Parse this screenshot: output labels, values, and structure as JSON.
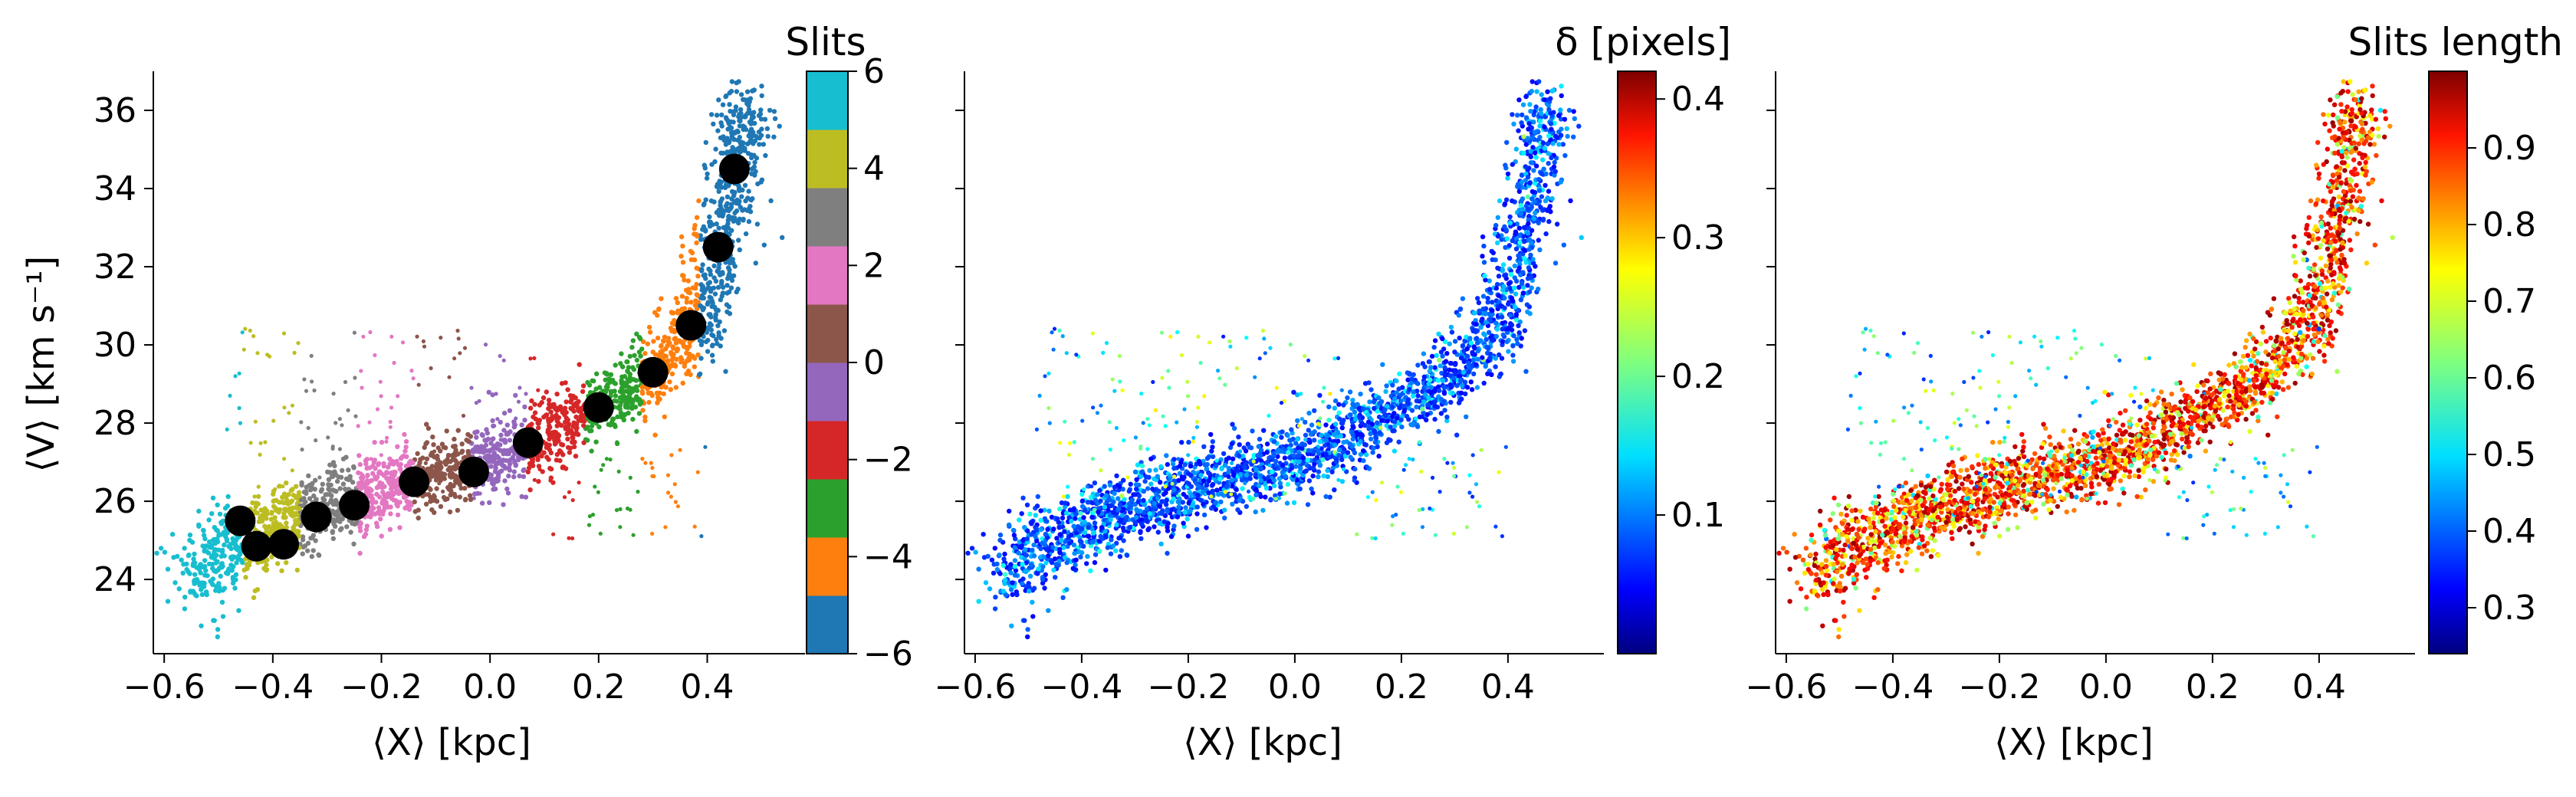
{
  "chart_data": [
    {
      "type": "scatter",
      "panel": "left",
      "xlabel": "⟨X⟩ [kpc]",
      "ylabel": "⟨V⟩ [km s⁻¹]",
      "xlim": [
        -0.62,
        0.58
      ],
      "ylim": [
        22.1,
        37.0
      ],
      "xticks": [
        -0.6,
        -0.4,
        -0.2,
        0.0,
        0.2,
        0.4
      ],
      "xtick_labels": [
        "−0.6",
        "−0.4",
        "−0.2",
        "0.0",
        "0.2",
        "0.4"
      ],
      "yticks": [
        24,
        26,
        28,
        30,
        32,
        34,
        36
      ],
      "ytick_labels": [
        "24",
        "26",
        "28",
        "30",
        "32",
        "34",
        "36"
      ],
      "colorbar": {
        "title": "Slits",
        "type": "categorical",
        "range": [
          -6,
          6
        ],
        "ticks": [
          -6,
          -4,
          -2,
          0,
          2,
          4,
          6
        ],
        "tick_labels": [
          "−6",
          "−4",
          "−2",
          "0",
          "2",
          "4",
          "6"
        ],
        "colors": [
          "#1f77b4",
          "#ff7f0e",
          "#2ca02c",
          "#d62728",
          "#9467bd",
          "#8c564b",
          "#e377c2",
          "#7f7f7f",
          "#bcbd22",
          "#17becf"
        ]
      },
      "mean_points": [
        {
          "x": 0.45,
          "y": 34.5
        },
        {
          "x": 0.42,
          "y": 32.5
        },
        {
          "x": 0.37,
          "y": 30.5
        },
        {
          "x": 0.3,
          "y": 29.3
        },
        {
          "x": 0.2,
          "y": 28.4
        },
        {
          "x": 0.07,
          "y": 27.5
        },
        {
          "x": -0.03,
          "y": 26.75
        },
        {
          "x": -0.14,
          "y": 26.5
        },
        {
          "x": -0.25,
          "y": 25.9
        },
        {
          "x": -0.32,
          "y": 25.6
        },
        {
          "x": -0.38,
          "y": 24.9
        },
        {
          "x": -0.43,
          "y": 24.85
        },
        {
          "x": -0.46,
          "y": 25.5
        }
      ]
    },
    {
      "type": "scatter",
      "panel": "middle",
      "xlabel": "⟨X⟩ [kpc]",
      "xlim": [
        -0.62,
        0.58
      ],
      "ylim": [
        22.1,
        37.0
      ],
      "xticks": [
        -0.6,
        -0.4,
        -0.2,
        0.0,
        0.2,
        0.4
      ],
      "xtick_labels": [
        "−0.6",
        "−0.4",
        "−0.2",
        "0.0",
        "0.2",
        "0.4"
      ],
      "colorbar": {
        "title": "δ [pixels]",
        "type": "jet",
        "range": [
          0.0,
          0.42
        ],
        "ticks": [
          0.1,
          0.2,
          0.3,
          0.4
        ],
        "tick_labels": [
          "0.1",
          "0.2",
          "0.3",
          "0.4"
        ]
      }
    },
    {
      "type": "scatter",
      "panel": "right",
      "xlabel": "⟨X⟩ [kpc]",
      "xlim": [
        -0.62,
        0.58
      ],
      "ylim": [
        22.1,
        37.0
      ],
      "xticks": [
        -0.6,
        -0.4,
        -0.2,
        0.0,
        0.2,
        0.4
      ],
      "xtick_labels": [
        "−0.6",
        "−0.4",
        "−0.2",
        "0.0",
        "0.2",
        "0.4"
      ],
      "colorbar": {
        "title": "Slits length",
        "type": "jet",
        "range": [
          0.24,
          1.0
        ],
        "ticks": [
          0.3,
          0.4,
          0.5,
          0.6,
          0.7,
          0.8,
          0.9
        ],
        "tick_labels": [
          "0.3",
          "0.4",
          "0.5",
          "0.6",
          "0.7",
          "0.8",
          "0.9"
        ]
      }
    }
  ]
}
